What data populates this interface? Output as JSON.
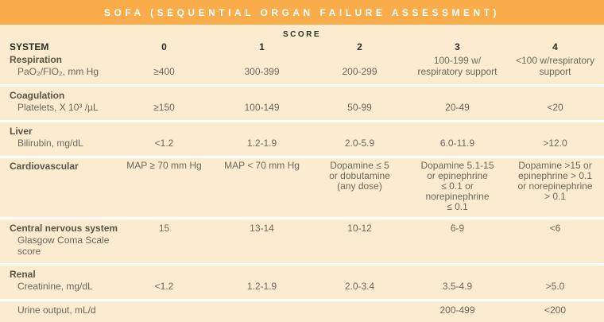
{
  "title": "SOFA (SEQUENTIAL ORGAN FAILURE ASSESSMENT)",
  "table": {
    "score_label": "SCORE",
    "columns": [
      "SYSTEM",
      "0",
      "1",
      "2",
      "3",
      "4"
    ],
    "rows": [
      {
        "system": "Respiration",
        "measure": "PaO₂/FIO₂, mm Hg",
        "values": [
          "≥400",
          "300-399",
          "200-299",
          "100-199 w/\nrespiratory support",
          "<100 w/respiratory\nsupport"
        ]
      },
      {
        "system": "Coagulation",
        "measure": "Platelets, X 10³ /µL",
        "values": [
          "≥150",
          "100-149",
          "50-99",
          "20-49",
          "<20"
        ]
      },
      {
        "system": "Liver",
        "measure": "Bilirubin, mg/dL",
        "values": [
          "<1.2",
          "1.2-1.9",
          "2.0-5.9",
          "6.0-11.9",
          ">12.0"
        ]
      },
      {
        "system": "Cardiovascular",
        "measure": "",
        "values": [
          "MAP ≥ 70 mm Hg",
          "MAP < 70 mm Hg",
          "Dopamine ≤ 5\nor dobutamine\n(any dose)",
          "Dopamine 5.1-15\nor epinephrine\n≤ 0.1 or\nnorepinephrine\n≤ 0.1",
          "Dopamine >15 or\nepinephrine > 0.1\nor norepinephrine\n> 0.1"
        ]
      },
      {
        "system": "Central nervous system",
        "measure": "Glasgow Coma Scale\nscore",
        "values": [
          "15",
          "13-14",
          "10-12",
          "6-9",
          "<6"
        ]
      },
      {
        "system": "Renal",
        "measure": "Creatinine, mg/dL",
        "values": [
          "<1.2",
          "1.2-1.9",
          "2.0-3.4",
          "3.5-4.9",
          ">5.0"
        ]
      },
      {
        "system": "",
        "measure": "Urine output, mL/d",
        "values": [
          "",
          "",
          "",
          "200-499",
          "<200"
        ]
      }
    ]
  },
  "colors": {
    "header_bg": "#F8AC4A",
    "band_bg": "#FBECD0",
    "separator": "#FFFFFF",
    "title_text": "#FFFFFF",
    "header_text": "#2F2D27",
    "system_text": "#5A5447",
    "value_text": "#6D675A"
  }
}
